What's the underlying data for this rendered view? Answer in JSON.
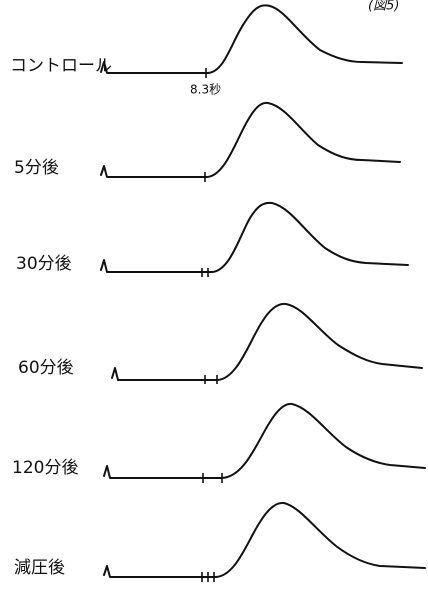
{
  "figure_label": "(図5)",
  "traces": [
    {
      "label": "コントロール",
      "time_note": "8.3秒"
    },
    {
      "label": "5分後"
    },
    {
      "label": "30分後"
    },
    {
      "label": "60分後"
    },
    {
      "label": "120分後"
    },
    {
      "label": "減圧後"
    }
  ]
}
